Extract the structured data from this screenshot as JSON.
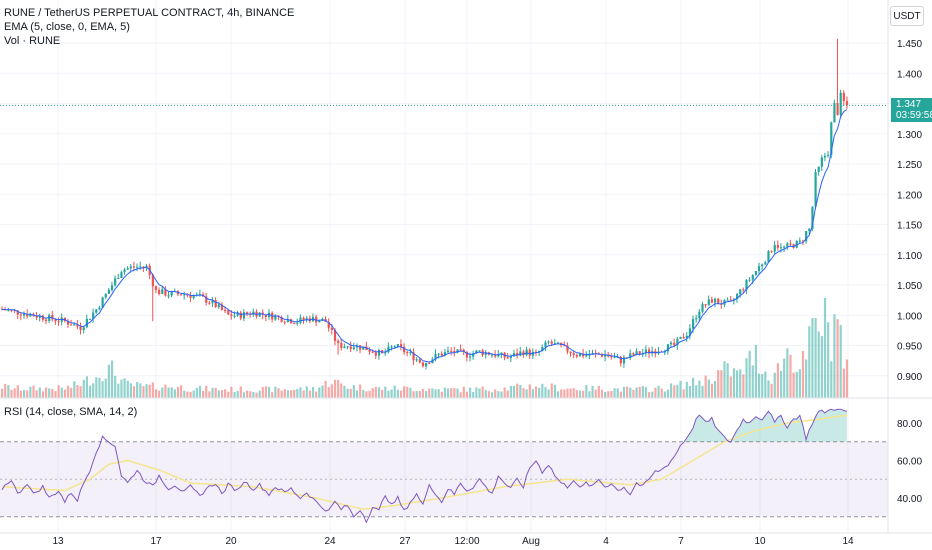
{
  "header": {
    "symbol": "RUNE / TetherUS PERPETUAL CONTRACT, 4h, BINANCE",
    "ema": "EMA (5, close, 0, EMA, 5)",
    "vol": "Vol · RUNE",
    "rsi": "RSI (14, close, SMA, 14, 2)",
    "currency": "USDT"
  },
  "price_badge": {
    "price": "1.347",
    "countdown": "03:59:58"
  },
  "colors": {
    "up": "#26a69a",
    "down": "#ef5350",
    "ema": "#2962ff",
    "rsi": "#7e57c2",
    "rsi_ma": "#f5e58d",
    "rsi_band": "#7e57c2"
  },
  "chart_data": [
    {
      "type": "candlestick",
      "series": [
        {
          "name": "RUNE / TetherUS PERPETUAL CONTRACT"
        }
      ],
      "y_ticks": [
        "1.450",
        "1.400",
        "1.350",
        "1.300",
        "1.250",
        "1.200",
        "1.150",
        "1.100",
        "1.050",
        "1.000",
        "0.950",
        "0.900"
      ],
      "ylim": [
        0.88,
        1.48
      ],
      "x_ticks": [
        "13",
        "17",
        "20",
        "24",
        "27",
        "12:00",
        "Aug",
        "4",
        "7",
        "10",
        "14"
      ],
      "last_price": 1.347,
      "price_anchors": [
        [
          0,
          1.01
        ],
        [
          10,
          1.0
        ],
        [
          20,
          0.99
        ],
        [
          25,
          0.98
        ],
        [
          30,
          1.01
        ],
        [
          35,
          1.05
        ],
        [
          38,
          1.075
        ],
        [
          42,
          1.08
        ],
        [
          46,
          1.08
        ],
        [
          49,
          1.04
        ],
        [
          53,
          1.035
        ],
        [
          58,
          1.035
        ],
        [
          63,
          1.03
        ],
        [
          67,
          1.02
        ],
        [
          72,
          1.0
        ],
        [
          76,
          1.0
        ],
        [
          80,
          1.005
        ],
        [
          85,
          1.0
        ],
        [
          89,
          0.995
        ],
        [
          94,
          0.99
        ],
        [
          98,
          0.995
        ],
        [
          103,
          0.99
        ],
        [
          107,
          0.95
        ],
        [
          112,
          0.95
        ],
        [
          116,
          0.945
        ],
        [
          121,
          0.935
        ],
        [
          125,
          0.95
        ],
        [
          130,
          0.935
        ],
        [
          134,
          0.92
        ],
        [
          139,
          0.935
        ],
        [
          143,
          0.94
        ],
        [
          148,
          0.935
        ],
        [
          152,
          0.94
        ],
        [
          157,
          0.935
        ],
        [
          161,
          0.93
        ],
        [
          166,
          0.94
        ],
        [
          170,
          0.935
        ],
        [
          174,
          0.955
        ],
        [
          179,
          0.945
        ],
        [
          183,
          0.935
        ],
        [
          188,
          0.935
        ],
        [
          192,
          0.935
        ],
        [
          197,
          0.925
        ],
        [
          201,
          0.935
        ],
        [
          206,
          0.94
        ],
        [
          210,
          0.945
        ],
        [
          214,
          0.95
        ],
        [
          218,
          0.97
        ],
        [
          222,
          1.01
        ],
        [
          226,
          1.025
        ],
        [
          229,
          1.02
        ],
        [
          232,
          1.02
        ],
        [
          235,
          1.04
        ],
        [
          238,
          1.06
        ],
        [
          241,
          1.08
        ],
        [
          244,
          1.1
        ],
        [
          246,
          1.12
        ],
        [
          248,
          1.11
        ],
        [
          251,
          1.115
        ],
        [
          254,
          1.12
        ],
        [
          257,
          1.14
        ],
        [
          259,
          1.22
        ],
        [
          261,
          1.25
        ],
        [
          263,
          1.28
        ],
        [
          265,
          1.34
        ],
        [
          267,
          1.35
        ],
        [
          269,
          1.347
        ]
      ],
      "volume": [
        [
          0,
          0.12
        ],
        [
          5,
          0.1
        ],
        [
          10,
          0.1
        ],
        [
          15,
          0.1
        ],
        [
          20,
          0.1
        ],
        [
          25,
          0.15
        ],
        [
          28,
          0.2
        ],
        [
          30,
          0.22
        ],
        [
          32,
          0.28
        ],
        [
          35,
          0.3
        ],
        [
          38,
          0.18
        ],
        [
          40,
          0.14
        ],
        [
          45,
          0.12
        ],
        [
          50,
          0.12
        ],
        [
          55,
          0.12
        ],
        [
          60,
          0.1
        ],
        [
          70,
          0.09
        ],
        [
          80,
          0.09
        ],
        [
          90,
          0.09
        ],
        [
          100,
          0.1
        ],
        [
          105,
          0.18
        ],
        [
          110,
          0.12
        ],
        [
          120,
          0.1
        ],
        [
          130,
          0.1
        ],
        [
          140,
          0.09
        ],
        [
          150,
          0.09
        ],
        [
          160,
          0.1
        ],
        [
          170,
          0.13
        ],
        [
          180,
          0.1
        ],
        [
          190,
          0.1
        ],
        [
          200,
          0.09
        ],
        [
          210,
          0.1
        ],
        [
          220,
          0.16
        ],
        [
          225,
          0.2
        ],
        [
          230,
          0.3
        ],
        [
          235,
          0.25
        ],
        [
          238,
          0.4
        ],
        [
          240,
          0.45
        ],
        [
          242,
          0.3
        ],
        [
          245,
          0.22
        ],
        [
          248,
          0.35
        ],
        [
          250,
          0.5
        ],
        [
          252,
          0.4
        ],
        [
          254,
          0.3
        ],
        [
          256,
          0.45
        ],
        [
          258,
          0.7
        ],
        [
          260,
          0.75
        ],
        [
          262,
          0.85
        ],
        [
          264,
          0.6
        ],
        [
          266,
          1.0
        ],
        [
          268,
          0.3
        ]
      ]
    },
    {
      "type": "line",
      "series": [
        {
          "name": "RSI (14, close, SMA, 14, 2)"
        }
      ],
      "y_ticks": [
        "80.00",
        "60.00",
        "40.00"
      ],
      "ylim": [
        25,
        90
      ],
      "bands": [
        30,
        70
      ],
      "rsi_anchors": [
        [
          0,
          45
        ],
        [
          3,
          50
        ],
        [
          5,
          42
        ],
        [
          8,
          48
        ],
        [
          10,
          42
        ],
        [
          13,
          46
        ],
        [
          15,
          40
        ],
        [
          18,
          44
        ],
        [
          20,
          38
        ],
        [
          22,
          43
        ],
        [
          24,
          39
        ],
        [
          26,
          48
        ],
        [
          28,
          55
        ],
        [
          30,
          65
        ],
        [
          32,
          72
        ],
        [
          34,
          70
        ],
        [
          36,
          68
        ],
        [
          38,
          52
        ],
        [
          40,
          48
        ],
        [
          43,
          55
        ],
        [
          45,
          50
        ],
        [
          48,
          46
        ],
        [
          50,
          52
        ],
        [
          53,
          45
        ],
        [
          55,
          47
        ],
        [
          58,
          43
        ],
        [
          60,
          46
        ],
        [
          63,
          41
        ],
        [
          65,
          45
        ],
        [
          68,
          48
        ],
        [
          70,
          42
        ],
        [
          72,
          47
        ],
        [
          75,
          44
        ],
        [
          77,
          49
        ],
        [
          80,
          45
        ],
        [
          82,
          47
        ],
        [
          85,
          42
        ],
        [
          87,
          46
        ],
        [
          90,
          43
        ],
        [
          92,
          45
        ],
        [
          95,
          40
        ],
        [
          97,
          43
        ],
        [
          100,
          38
        ],
        [
          102,
          35
        ],
        [
          104,
          33
        ],
        [
          106,
          38
        ],
        [
          108,
          34
        ],
        [
          110,
          36
        ],
        [
          112,
          30
        ],
        [
          114,
          34
        ],
        [
          116,
          28
        ],
        [
          118,
          35
        ],
        [
          120,
          33
        ],
        [
          122,
          42
        ],
        [
          124,
          36
        ],
        [
          126,
          40
        ],
        [
          128,
          33
        ],
        [
          130,
          38
        ],
        [
          132,
          42
        ],
        [
          134,
          36
        ],
        [
          136,
          48
        ],
        [
          138,
          42
        ],
        [
          140,
          38
        ],
        [
          142,
          45
        ],
        [
          144,
          42
        ],
        [
          146,
          48
        ],
        [
          148,
          44
        ],
        [
          150,
          46
        ],
        [
          152,
          50
        ],
        [
          154,
          46
        ],
        [
          156,
          42
        ],
        [
          158,
          52
        ],
        [
          160,
          48
        ],
        [
          162,
          45
        ],
        [
          164,
          50
        ],
        [
          166,
          46
        ],
        [
          168,
          56
        ],
        [
          170,
          60
        ],
        [
          172,
          54
        ],
        [
          174,
          58
        ],
        [
          176,
          52
        ],
        [
          178,
          48
        ],
        [
          180,
          46
        ],
        [
          182,
          50
        ],
        [
          184,
          45
        ],
        [
          186,
          48
        ],
        [
          188,
          46
        ],
        [
          190,
          50
        ],
        [
          192,
          46
        ],
        [
          194,
          48
        ],
        [
          196,
          44
        ],
        [
          198,
          46
        ],
        [
          200,
          42
        ],
        [
          202,
          48
        ],
        [
          204,
          46
        ],
        [
          206,
          50
        ],
        [
          208,
          54
        ],
        [
          210,
          55
        ],
        [
          212,
          58
        ],
        [
          214,
          62
        ],
        [
          216,
          68
        ],
        [
          218,
          72
        ],
        [
          220,
          78
        ],
        [
          222,
          85
        ],
        [
          224,
          80
        ],
        [
          226,
          82
        ],
        [
          228,
          76
        ],
        [
          230,
          72
        ],
        [
          232,
          70
        ],
        [
          234,
          76
        ],
        [
          236,
          82
        ],
        [
          238,
          80
        ],
        [
          240,
          84
        ],
        [
          242,
          82
        ],
        [
          244,
          87
        ],
        [
          246,
          80
        ],
        [
          248,
          84
        ],
        [
          250,
          78
        ],
        [
          252,
          82
        ],
        [
          254,
          84
        ],
        [
          256,
          72
        ],
        [
          258,
          80
        ],
        [
          260,
          86
        ],
        [
          262,
          86
        ],
        [
          264,
          87
        ],
        [
          266,
          88
        ],
        [
          268,
          86
        ]
      ],
      "rsi_ma_anchors": [
        [
          0,
          46
        ],
        [
          20,
          44
        ],
        [
          28,
          50
        ],
        [
          34,
          58
        ],
        [
          40,
          60
        ],
        [
          50,
          55
        ],
        [
          60,
          48
        ],
        [
          80,
          46
        ],
        [
          100,
          40
        ],
        [
          115,
          34
        ],
        [
          125,
          36
        ],
        [
          140,
          40
        ],
        [
          160,
          46
        ],
        [
          180,
          50
        ],
        [
          200,
          47
        ],
        [
          210,
          50
        ],
        [
          220,
          60
        ],
        [
          230,
          70
        ],
        [
          240,
          76
        ],
        [
          250,
          80
        ],
        [
          260,
          82
        ],
        [
          268,
          84
        ]
      ]
    }
  ]
}
